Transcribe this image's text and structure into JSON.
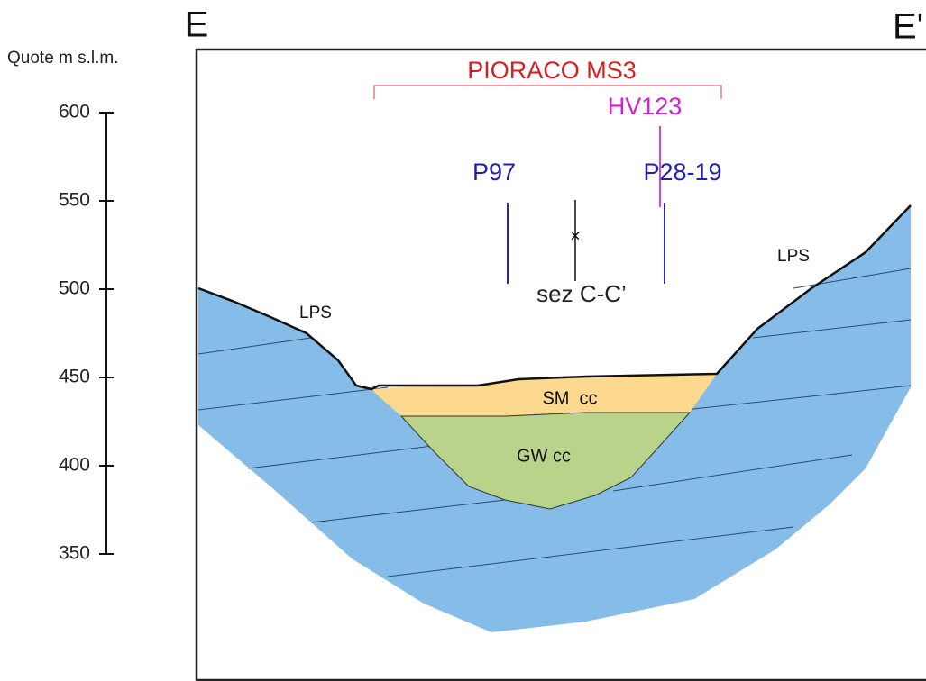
{
  "header": {
    "left_label": "E",
    "right_label": "E'"
  },
  "axis": {
    "title": "Quote m s.l.m.",
    "ticks": [
      600,
      550,
      500,
      450,
      400,
      350
    ]
  },
  "labels": {
    "section": "PIORACO MS3",
    "hv": "HV123",
    "boreholes": [
      "P97",
      "P28-19"
    ],
    "trace": "sez C-C’",
    "formations": [
      "LPS",
      "LPS"
    ],
    "units": [
      "SM  cc",
      "GW cc"
    ]
  }
}
